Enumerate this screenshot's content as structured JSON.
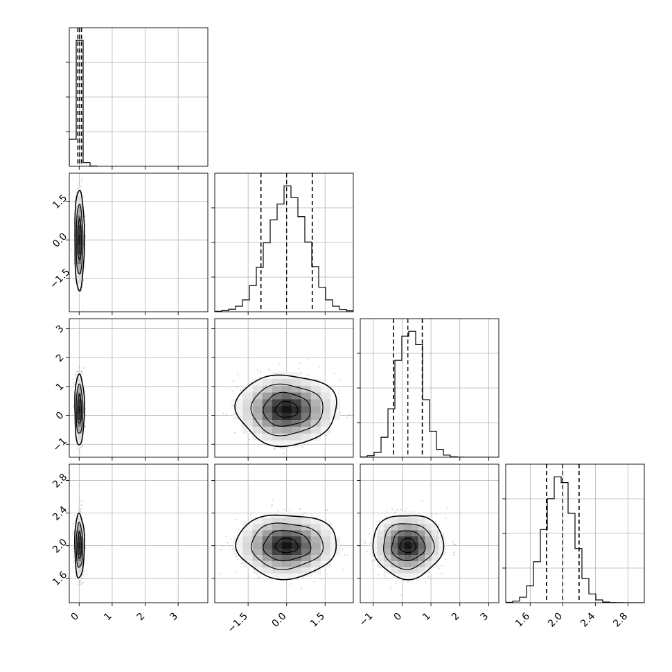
{
  "figure": {
    "background": "#ffffff",
    "line_color": "#000000",
    "grid_color": "#b0b0b0",
    "scatter_color": "#808080"
  },
  "chart_data": {
    "type": "corner",
    "grid": true,
    "parameters": [
      {
        "range": [
          -0.3,
          3.9
        ],
        "ticks": [
          0,
          1,
          2,
          3
        ],
        "tick_labels": [
          "0",
          "1",
          "2",
          "3"
        ]
      },
      {
        "range": [
          -2.8,
          2.6
        ],
        "ticks": [
          -1.5,
          0.0,
          1.5
        ],
        "tick_labels": [
          "−1.5",
          "0.0",
          "1.5"
        ]
      },
      {
        "range": [
          -1.45,
          3.35
        ],
        "ticks": [
          -1,
          0,
          1,
          2,
          3
        ],
        "tick_labels": [
          "−1",
          "0",
          "1",
          "2",
          "3"
        ]
      },
      {
        "range": [
          1.3,
          3.0
        ],
        "ticks": [
          1.6,
          2.0,
          2.4,
          2.8
        ],
        "tick_labels": [
          "1.6",
          "2.0",
          "2.4",
          "2.8"
        ]
      }
    ],
    "histograms": [
      {
        "param": 0,
        "edges": [
          -0.3,
          -0.09,
          0.12,
          0.33,
          0.54
        ],
        "counts": [
          880,
          4100,
          120,
          10
        ],
        "quantiles": [
          -0.04,
          0.01,
          0.07
        ]
      },
      {
        "param": 1,
        "edges": [
          -2.8,
          -2.53,
          -2.26,
          -1.99,
          -1.72,
          -1.45,
          -1.18,
          -0.91,
          -0.64,
          -0.37,
          -0.1,
          0.17,
          0.44,
          0.71,
          0.98,
          1.25,
          1.52,
          1.79,
          2.06,
          2.33,
          2.6
        ],
        "counts": [
          6,
          14,
          32,
          70,
          150,
          330,
          560,
          870,
          1160,
          1360,
          1590,
          1440,
          1200,
          880,
          570,
          310,
          150,
          70,
          30,
          12
        ],
        "quantiles": [
          -1.0,
          0.0,
          1.0
        ]
      },
      {
        "param": 2,
        "edges": [
          -1.45,
          -1.21,
          -0.97,
          -0.73,
          -0.49,
          -0.25,
          -0.01,
          0.23,
          0.47,
          0.71,
          0.95,
          1.19,
          1.43,
          1.67,
          1.91,
          2.15,
          2.39,
          2.63,
          2.87,
          3.11,
          3.35
        ],
        "counts": [
          5,
          25,
          80,
          330,
          800,
          1600,
          2000,
          2080,
          1860,
          950,
          430,
          130,
          35,
          8,
          2,
          0,
          0,
          0,
          0,
          0
        ],
        "quantiles": [
          -0.3,
          0.2,
          0.7
        ]
      },
      {
        "param": 3,
        "edges": [
          1.3,
          1.385,
          1.47,
          1.555,
          1.64,
          1.725,
          1.81,
          1.895,
          1.98,
          2.065,
          2.15,
          2.235,
          2.32,
          2.405,
          2.49,
          2.575,
          2.66,
          2.745,
          2.83,
          2.915,
          3.0
        ],
        "counts": [
          5,
          22,
          75,
          230,
          560,
          1000,
          1420,
          1720,
          1640,
          1220,
          740,
          330,
          120,
          38,
          10,
          3,
          1,
          0,
          0,
          0
        ],
        "quantiles": [
          1.8,
          2.0,
          2.2
        ]
      }
    ],
    "pairs": [
      {
        "x": 0,
        "y": 1,
        "center": [
          0.01,
          0.0
        ],
        "sigma": [
          0.06,
          0.8
        ],
        "contour_scale": [
          1.0,
          1.7,
          2.45
        ]
      },
      {
        "x": 0,
        "y": 2,
        "center": [
          0.01,
          0.2
        ],
        "sigma": [
          0.06,
          0.5
        ],
        "contour_scale": [
          1.0,
          1.7,
          2.45
        ]
      },
      {
        "x": 0,
        "y": 3,
        "center": [
          0.01,
          2.0
        ],
        "sigma": [
          0.06,
          0.16
        ],
        "contour_scale": [
          1.0,
          1.7,
          2.45
        ]
      },
      {
        "x": 1,
        "y": 2,
        "center": [
          0.0,
          0.2
        ],
        "sigma": [
          0.8,
          0.5
        ],
        "contour_scale": [
          0.55,
          1.15,
          1.75,
          2.45
        ]
      },
      {
        "x": 1,
        "y": 3,
        "center": [
          0.0,
          2.0
        ],
        "sigma": [
          0.8,
          0.16
        ],
        "contour_scale": [
          0.55,
          1.15,
          1.75,
          2.45
        ]
      },
      {
        "x": 2,
        "y": 3,
        "center": [
          0.2,
          2.0
        ],
        "sigma": [
          0.5,
          0.16
        ],
        "contour_scale": [
          0.55,
          1.15,
          1.75,
          2.45
        ]
      }
    ]
  }
}
